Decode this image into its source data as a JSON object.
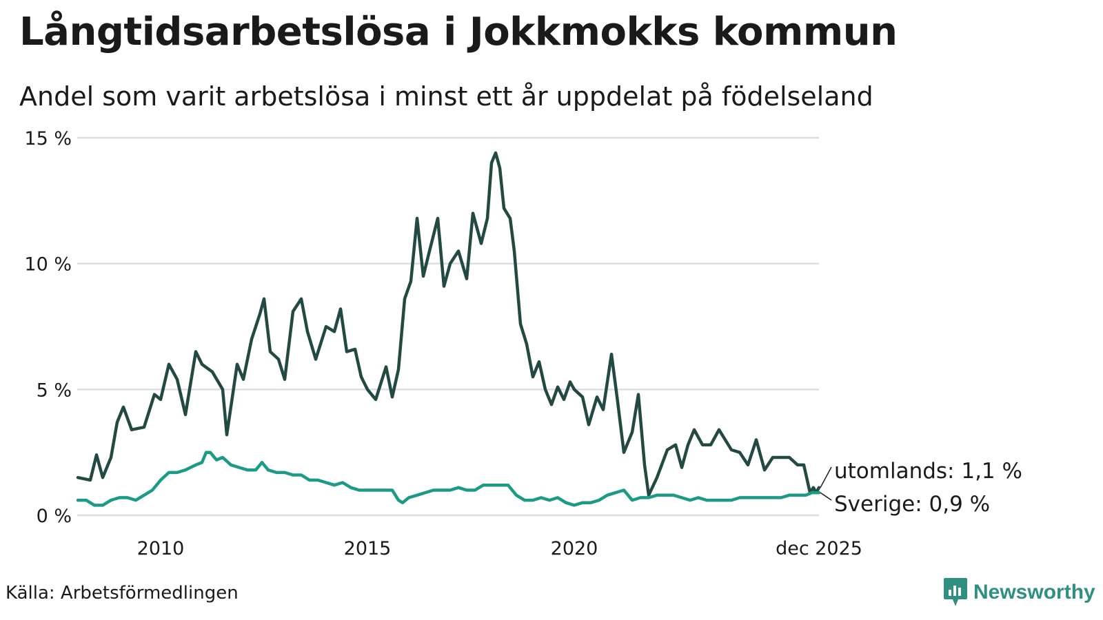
{
  "title": "Långtidsarbetslösa i Jokkmokks kommun",
  "subtitle": "Andel som varit arbetslösa i minst ett år uppdelat på födelseland",
  "source": "Källa: Arbetsförmedlingen",
  "brand": "Newsworthy",
  "chart_data": {
    "type": "line",
    "title": "Långtidsarbetslösa i Jokkmokks kommun",
    "ylabel": "",
    "xlabel": "",
    "ylim": [
      0,
      15
    ],
    "xlim": [
      2008.0,
      2025.917
    ],
    "y_ticks": [
      0,
      5,
      10,
      15
    ],
    "y_tick_labels": [
      "0 %",
      "5 %",
      "10 %",
      "15 %"
    ],
    "x_ticks": [
      2010,
      2015,
      2020,
      2025.917
    ],
    "x_tick_labels": [
      "2010",
      "2015",
      "2020",
      "dec 2025"
    ],
    "grid": true,
    "series": [
      {
        "name": "utomlands",
        "label": "utomlands: 1,1 %",
        "color": "#234a42",
        "points": [
          [
            2008.0,
            1.5
          ],
          [
            2008.3,
            1.4
          ],
          [
            2008.45,
            2.4
          ],
          [
            2008.6,
            1.5
          ],
          [
            2008.8,
            2.3
          ],
          [
            2008.95,
            3.7
          ],
          [
            2009.1,
            4.3
          ],
          [
            2009.3,
            3.4
          ],
          [
            2009.6,
            3.5
          ],
          [
            2009.85,
            4.8
          ],
          [
            2010.0,
            4.6
          ],
          [
            2010.2,
            6.0
          ],
          [
            2010.4,
            5.4
          ],
          [
            2010.6,
            4.0
          ],
          [
            2010.85,
            6.5
          ],
          [
            2011.0,
            6.0
          ],
          [
            2011.25,
            5.7
          ],
          [
            2011.5,
            5.0
          ],
          [
            2011.6,
            3.2
          ],
          [
            2011.85,
            6.0
          ],
          [
            2012.0,
            5.4
          ],
          [
            2012.2,
            7.0
          ],
          [
            2012.4,
            8.0
          ],
          [
            2012.5,
            8.6
          ],
          [
            2012.65,
            6.5
          ],
          [
            2012.85,
            6.2
          ],
          [
            2013.0,
            5.4
          ],
          [
            2013.2,
            8.1
          ],
          [
            2013.4,
            8.6
          ],
          [
            2013.55,
            7.3
          ],
          [
            2013.75,
            6.2
          ],
          [
            2014.0,
            7.5
          ],
          [
            2014.2,
            7.3
          ],
          [
            2014.35,
            8.2
          ],
          [
            2014.5,
            6.5
          ],
          [
            2014.7,
            6.6
          ],
          [
            2014.85,
            5.5
          ],
          [
            2015.0,
            5.0
          ],
          [
            2015.2,
            4.6
          ],
          [
            2015.45,
            5.9
          ],
          [
            2015.6,
            4.7
          ],
          [
            2015.75,
            5.8
          ],
          [
            2015.9,
            8.6
          ],
          [
            2016.05,
            9.3
          ],
          [
            2016.2,
            11.8
          ],
          [
            2016.35,
            9.5
          ],
          [
            2016.5,
            10.5
          ],
          [
            2016.7,
            11.8
          ],
          [
            2016.85,
            9.1
          ],
          [
            2017.0,
            10.0
          ],
          [
            2017.2,
            10.5
          ],
          [
            2017.4,
            9.4
          ],
          [
            2017.55,
            12.0
          ],
          [
            2017.75,
            10.8
          ],
          [
            2017.9,
            11.8
          ],
          [
            2018.0,
            14.0
          ],
          [
            2018.1,
            14.4
          ],
          [
            2018.2,
            13.8
          ],
          [
            2018.3,
            12.2
          ],
          [
            2018.45,
            11.8
          ],
          [
            2018.55,
            10.5
          ],
          [
            2018.7,
            7.6
          ],
          [
            2018.85,
            6.8
          ],
          [
            2019.0,
            5.5
          ],
          [
            2019.15,
            6.1
          ],
          [
            2019.3,
            5.0
          ],
          [
            2019.45,
            4.4
          ],
          [
            2019.6,
            5.1
          ],
          [
            2019.75,
            4.6
          ],
          [
            2019.9,
            5.3
          ],
          [
            2020.0,
            5.0
          ],
          [
            2020.2,
            4.7
          ],
          [
            2020.35,
            3.6
          ],
          [
            2020.55,
            4.7
          ],
          [
            2020.7,
            4.2
          ],
          [
            2020.9,
            6.4
          ],
          [
            2021.05,
            4.5
          ],
          [
            2021.2,
            2.5
          ],
          [
            2021.4,
            3.3
          ],
          [
            2021.55,
            4.8
          ],
          [
            2021.7,
            2.0
          ],
          [
            2021.8,
            0.8
          ],
          [
            2022.0,
            1.5
          ],
          [
            2022.25,
            2.6
          ],
          [
            2022.45,
            2.8
          ],
          [
            2022.6,
            1.9
          ],
          [
            2022.75,
            2.8
          ],
          [
            2022.9,
            3.4
          ],
          [
            2023.1,
            2.8
          ],
          [
            2023.3,
            2.8
          ],
          [
            2023.5,
            3.4
          ],
          [
            2023.8,
            2.6
          ],
          [
            2024.0,
            2.5
          ],
          [
            2024.2,
            2.0
          ],
          [
            2024.4,
            3.0
          ],
          [
            2024.6,
            1.8
          ],
          [
            2024.8,
            2.3
          ],
          [
            2025.0,
            2.3
          ],
          [
            2025.2,
            2.3
          ],
          [
            2025.4,
            2.0
          ],
          [
            2025.55,
            2.0
          ],
          [
            2025.7,
            0.9
          ],
          [
            2025.78,
            1.1
          ],
          [
            2025.85,
            0.9
          ],
          [
            2025.917,
            1.1
          ]
        ]
      },
      {
        "name": "Sverige",
        "label": "Sverige: 0,9 %",
        "color": "#1b9a86",
        "points": [
          [
            2008.0,
            0.6
          ],
          [
            2008.2,
            0.6
          ],
          [
            2008.4,
            0.4
          ],
          [
            2008.6,
            0.4
          ],
          [
            2008.8,
            0.6
          ],
          [
            2009.0,
            0.7
          ],
          [
            2009.2,
            0.7
          ],
          [
            2009.4,
            0.6
          ],
          [
            2009.6,
            0.8
          ],
          [
            2009.8,
            1.0
          ],
          [
            2010.0,
            1.4
          ],
          [
            2010.2,
            1.7
          ],
          [
            2010.4,
            1.7
          ],
          [
            2010.6,
            1.8
          ],
          [
            2010.85,
            2.0
          ],
          [
            2011.0,
            2.1
          ],
          [
            2011.1,
            2.5
          ],
          [
            2011.2,
            2.5
          ],
          [
            2011.35,
            2.2
          ],
          [
            2011.5,
            2.3
          ],
          [
            2011.7,
            2.0
          ],
          [
            2011.9,
            1.9
          ],
          [
            2012.1,
            1.8
          ],
          [
            2012.3,
            1.8
          ],
          [
            2012.45,
            2.1
          ],
          [
            2012.6,
            1.8
          ],
          [
            2012.8,
            1.7
          ],
          [
            2013.0,
            1.7
          ],
          [
            2013.2,
            1.6
          ],
          [
            2013.4,
            1.6
          ],
          [
            2013.6,
            1.4
          ],
          [
            2013.8,
            1.4
          ],
          [
            2014.0,
            1.3
          ],
          [
            2014.2,
            1.2
          ],
          [
            2014.4,
            1.3
          ],
          [
            2014.6,
            1.1
          ],
          [
            2014.8,
            1.0
          ],
          [
            2015.0,
            1.0
          ],
          [
            2015.2,
            1.0
          ],
          [
            2015.4,
            1.0
          ],
          [
            2015.6,
            1.0
          ],
          [
            2015.75,
            0.6
          ],
          [
            2015.85,
            0.5
          ],
          [
            2016.0,
            0.7
          ],
          [
            2016.2,
            0.8
          ],
          [
            2016.4,
            0.9
          ],
          [
            2016.6,
            1.0
          ],
          [
            2016.8,
            1.0
          ],
          [
            2017.0,
            1.0
          ],
          [
            2017.2,
            1.1
          ],
          [
            2017.4,
            1.0
          ],
          [
            2017.6,
            1.0
          ],
          [
            2017.8,
            1.2
          ],
          [
            2018.0,
            1.2
          ],
          [
            2018.2,
            1.2
          ],
          [
            2018.4,
            1.2
          ],
          [
            2018.6,
            0.8
          ],
          [
            2018.8,
            0.6
          ],
          [
            2019.0,
            0.6
          ],
          [
            2019.2,
            0.7
          ],
          [
            2019.4,
            0.6
          ],
          [
            2019.6,
            0.7
          ],
          [
            2019.8,
            0.5
          ],
          [
            2020.0,
            0.4
          ],
          [
            2020.2,
            0.5
          ],
          [
            2020.4,
            0.5
          ],
          [
            2020.6,
            0.6
          ],
          [
            2020.8,
            0.8
          ],
          [
            2021.0,
            0.9
          ],
          [
            2021.2,
            1.0
          ],
          [
            2021.4,
            0.6
          ],
          [
            2021.6,
            0.7
          ],
          [
            2021.8,
            0.7
          ],
          [
            2022.0,
            0.8
          ],
          [
            2022.2,
            0.8
          ],
          [
            2022.4,
            0.8
          ],
          [
            2022.6,
            0.7
          ],
          [
            2022.8,
            0.6
          ],
          [
            2023.0,
            0.7
          ],
          [
            2023.2,
            0.6
          ],
          [
            2023.4,
            0.6
          ],
          [
            2023.6,
            0.6
          ],
          [
            2023.8,
            0.6
          ],
          [
            2024.0,
            0.7
          ],
          [
            2024.2,
            0.7
          ],
          [
            2024.4,
            0.7
          ],
          [
            2024.6,
            0.7
          ],
          [
            2024.8,
            0.7
          ],
          [
            2025.0,
            0.7
          ],
          [
            2025.2,
            0.8
          ],
          [
            2025.4,
            0.8
          ],
          [
            2025.6,
            0.8
          ],
          [
            2025.75,
            0.9
          ],
          [
            2025.917,
            0.9
          ]
        ]
      }
    ]
  }
}
